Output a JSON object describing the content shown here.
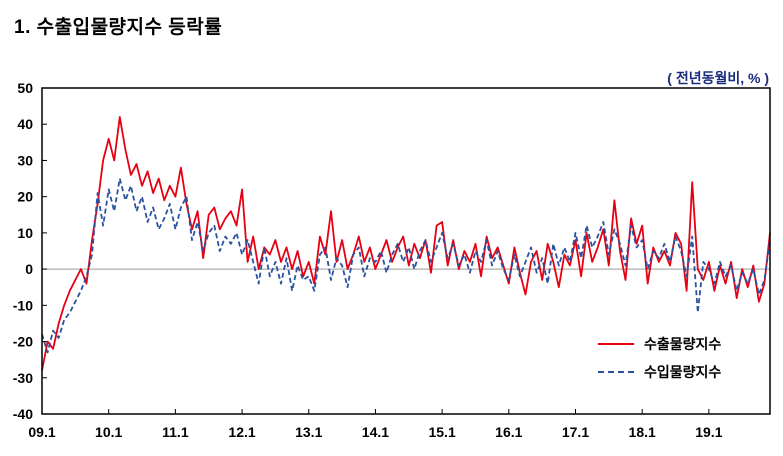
{
  "chart_data": {
    "type": "line",
    "title": "1. 수출입물량지수 등락률",
    "unit_note": "( 전년동월비, % )",
    "x_tick_labels": [
      "09.1",
      "10.1",
      "11.1",
      "12.1",
      "13.1",
      "14.1",
      "15.1",
      "16.1",
      "17.1",
      "18.1",
      "19.1"
    ],
    "x_tick_interval_months": 12,
    "x_range_months": 132,
    "ylim": [
      -40,
      50
    ],
    "yticks": [
      50,
      40,
      30,
      20,
      10,
      0,
      -10,
      -20,
      -30,
      -40
    ],
    "zero_line": true,
    "grid": false,
    "legend_position": "inside-bottom-right",
    "legend": [
      {
        "label": "수출물량지수"
      },
      {
        "label": "수입물량지수"
      }
    ],
    "series": [
      {
        "name": "수출물량지수",
        "color": "#e60012",
        "style": "solid",
        "values": [
          -28,
          -20,
          -22,
          -15,
          -10,
          -6,
          -3,
          0,
          -4,
          8,
          18,
          30,
          36,
          30,
          42,
          33,
          26,
          29,
          23,
          27,
          21,
          25,
          19,
          23,
          20,
          28,
          18,
          11,
          16,
          3,
          15,
          17,
          11,
          14,
          16,
          12,
          22,
          2,
          9,
          0,
          6,
          4,
          8,
          2,
          6,
          0,
          5,
          -2,
          2,
          -4,
          9,
          4,
          16,
          2,
          8,
          0,
          4,
          9,
          2,
          6,
          0,
          4,
          8,
          2,
          6,
          9,
          1,
          7,
          3,
          8,
          -1,
          12,
          13,
          1,
          8,
          0,
          5,
          2,
          7,
          -2,
          9,
          3,
          6,
          1,
          -4,
          6,
          -1,
          -7,
          2,
          5,
          -3,
          7,
          2,
          -5,
          4,
          1,
          8,
          -2,
          10,
          2,
          6,
          11,
          1,
          19,
          5,
          -3,
          14,
          7,
          12,
          -4,
          6,
          2,
          5,
          1,
          10,
          7,
          -6,
          24,
          0,
          -3,
          2,
          -6,
          1,
          -4,
          2,
          -8,
          0,
          -5,
          1,
          -9,
          -4,
          10
        ]
      },
      {
        "name": "수입물량지수",
        "color": "#2a52a0",
        "style": "dashed",
        "values": [
          -18,
          -23,
          -17,
          -19,
          -14,
          -12,
          -9,
          -6,
          -2,
          4,
          21,
          12,
          22,
          16,
          25,
          19,
          23,
          16,
          20,
          13,
          17,
          11,
          14,
          18,
          11,
          17,
          20,
          8,
          13,
          5,
          10,
          12,
          5,
          9,
          7,
          10,
          4,
          8,
          2,
          -4,
          6,
          -2,
          2,
          -4,
          3,
          -6,
          1,
          -3,
          -2,
          -6,
          4,
          6,
          -3,
          3,
          1,
          -5,
          4,
          6,
          -2,
          3,
          2,
          5,
          -1,
          4,
          7,
          2,
          6,
          0,
          5,
          8,
          2,
          6,
          10,
          3,
          7,
          1,
          4,
          -1,
          5,
          2,
          8,
          1,
          5,
          0,
          -3,
          4,
          -2,
          2,
          6,
          -1,
          3,
          -4,
          7,
          1,
          6,
          2,
          10,
          3,
          12,
          6,
          9,
          13,
          4,
          11,
          7,
          1,
          12,
          6,
          8,
          0,
          5,
          3,
          7,
          2,
          9,
          5,
          -2,
          9,
          -12,
          2,
          0,
          -4,
          2,
          -2,
          1,
          -6,
          -1,
          -4,
          0,
          -7,
          -3,
          8
        ]
      }
    ]
  }
}
